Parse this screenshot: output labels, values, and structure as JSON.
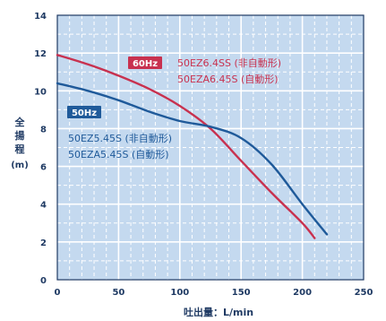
{
  "chart_data": {
    "type": "line",
    "xlabel": "吐出量：L/min",
    "ylabel": [
      "全",
      "揚",
      "程",
      "(m)"
    ],
    "xlim": [
      0,
      250
    ],
    "ylim": [
      0,
      14
    ],
    "x_ticks": [
      "0",
      "50",
      "100",
      "150",
      "200",
      "250"
    ],
    "y_ticks": [
      "0",
      "2",
      "4",
      "6",
      "8",
      "10",
      "12",
      "14"
    ],
    "grid": true,
    "series": [
      {
        "name": "60Hz",
        "models": [
          "50EZ6.4SS (非自動形)",
          "50EZA6.45S (自動形)"
        ],
        "color": "#c8314f",
        "x": [
          0,
          25,
          50,
          75,
          100,
          125,
          150,
          175,
          200,
          210
        ],
        "y": [
          11.9,
          11.4,
          10.8,
          10.1,
          9.2,
          8.0,
          6.3,
          4.6,
          3.0,
          2.2
        ]
      },
      {
        "name": "50Hz",
        "models": [
          "50EZ5.45S (非自動形)",
          "50EZA5.45S (自動形)"
        ],
        "color": "#1f5a9a",
        "x": [
          0,
          25,
          50,
          75,
          100,
          125,
          150,
          175,
          200,
          220
        ],
        "y": [
          10.4,
          10.0,
          9.5,
          8.9,
          8.4,
          8.1,
          7.5,
          6.1,
          4.0,
          2.4
        ]
      }
    ]
  }
}
